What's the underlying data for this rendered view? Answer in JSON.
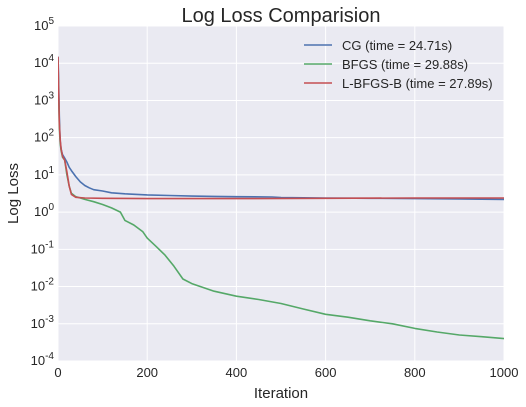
{
  "chart_data": {
    "type": "line",
    "title": "Log Loss Comparision",
    "xlabel": "Iteration",
    "ylabel": "Log Loss",
    "xlim": [
      0,
      1000
    ],
    "ylim": [
      0.0001,
      100000
    ],
    "yscale": "log",
    "grid": true,
    "legend_position": "top-right",
    "x_ticks": [
      "0",
      "200",
      "400",
      "600",
      "800",
      "1000"
    ],
    "y_ticks": [
      {
        "base": "10",
        "exp": "-4"
      },
      {
        "base": "10",
        "exp": "-3"
      },
      {
        "base": "10",
        "exp": "-2"
      },
      {
        "base": "10",
        "exp": "-1"
      },
      {
        "base": "10",
        "exp": "0"
      },
      {
        "base": "10",
        "exp": "1"
      },
      {
        "base": "10",
        "exp": "2"
      },
      {
        "base": "10",
        "exp": "3"
      },
      {
        "base": "10",
        "exp": "4"
      },
      {
        "base": "10",
        "exp": "5"
      }
    ],
    "series": [
      {
        "name": "CG (time = 24.71s)",
        "color": "#4c72b0",
        "x": [
          0,
          1,
          2,
          3,
          4,
          5,
          7,
          10,
          15,
          20,
          25,
          30,
          40,
          50,
          60,
          70,
          80,
          100,
          120,
          150,
          200,
          250,
          300,
          350,
          400,
          480,
          500,
          600,
          700,
          800,
          900,
          1000
        ],
        "y": [
          15000,
          6000,
          1500,
          400,
          150,
          80,
          50,
          35,
          28,
          22,
          16,
          13,
          9,
          6.5,
          5.2,
          4.5,
          4.0,
          3.7,
          3.3,
          3.1,
          2.9,
          2.8,
          2.7,
          2.65,
          2.6,
          2.55,
          2.45,
          2.4,
          2.35,
          2.3,
          2.25,
          2.2
        ]
      },
      {
        "name": "BFGS (time = 29.88s)",
        "color": "#55a868",
        "x": [
          0,
          1,
          2,
          3,
          5,
          7,
          10,
          15,
          20,
          25,
          30,
          40,
          50,
          60,
          80,
          100,
          120,
          140,
          150,
          170,
          190,
          200,
          220,
          240,
          260,
          280,
          300,
          350,
          400,
          450,
          500,
          550,
          600,
          650,
          700,
          750,
          800,
          850,
          900,
          950,
          1000
        ],
        "y": [
          12000,
          3000,
          700,
          200,
          70,
          45,
          30,
          25,
          10,
          5,
          3.2,
          2.6,
          2.4,
          2.2,
          1.9,
          1.6,
          1.3,
          1.0,
          0.6,
          0.45,
          0.3,
          0.2,
          0.12,
          0.07,
          0.035,
          0.016,
          0.012,
          0.0075,
          0.0055,
          0.0045,
          0.0035,
          0.0025,
          0.0018,
          0.0015,
          0.0012,
          0.001,
          0.00075,
          0.0006,
          0.0005,
          0.00045,
          0.0004
        ]
      },
      {
        "name": "L-BFGS-B (time = 27.89s)",
        "color": "#c44e52",
        "x": [
          0,
          1,
          2,
          3,
          5,
          7,
          10,
          15,
          20,
          25,
          30,
          40,
          60,
          100,
          200,
          400,
          600,
          800,
          1000
        ],
        "y": [
          15000,
          4000,
          900,
          250,
          90,
          50,
          32,
          25,
          12,
          5,
          3,
          2.5,
          2.4,
          2.35,
          2.3,
          2.3,
          2.35,
          2.4,
          2.4
        ]
      }
    ]
  }
}
